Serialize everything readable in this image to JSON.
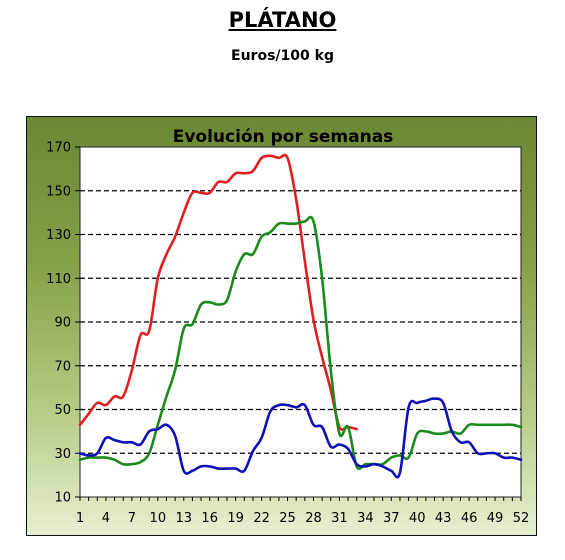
{
  "header": {
    "title": "PLÁTANO",
    "subtitle": "Euros/100 kg"
  },
  "chart_data": {
    "type": "line",
    "title": "Evolución por semanas",
    "xlabel": "",
    "ylabel": "",
    "xlim": [
      1,
      52
    ],
    "ylim": [
      10,
      170
    ],
    "x_ticks": [
      1,
      4,
      7,
      10,
      13,
      16,
      19,
      22,
      25,
      28,
      31,
      34,
      37,
      40,
      43,
      46,
      49,
      52
    ],
    "y_ticks": [
      10,
      30,
      50,
      70,
      90,
      110,
      130,
      150,
      170
    ],
    "grid": "horizontal-dashed",
    "background": "#ffffff",
    "series": [
      {
        "color": "#dd1f1f",
        "x": [
          1,
          2,
          3,
          4,
          5,
          6,
          7,
          8,
          9,
          10,
          11,
          12,
          13,
          14,
          15,
          16,
          17,
          18,
          19,
          20,
          21,
          22,
          23,
          24,
          25,
          26,
          27,
          28,
          29,
          30,
          31,
          32,
          33
        ],
        "values": [
          43,
          48,
          53,
          52,
          56,
          56,
          68,
          84,
          86,
          110,
          121,
          129,
          140,
          149,
          149,
          149,
          154,
          154,
          158,
          158,
          159,
          165,
          166,
          165,
          165,
          146,
          118,
          91,
          74,
          59,
          42,
          42,
          41
        ]
      },
      {
        "color": "#1a8a1a",
        "x": [
          1,
          2,
          3,
          4,
          5,
          6,
          7,
          8,
          9,
          10,
          11,
          12,
          13,
          14,
          15,
          16,
          17,
          18,
          19,
          20,
          21,
          22,
          23,
          24,
          25,
          26,
          27,
          28,
          29,
          30,
          31,
          32,
          33,
          34,
          35,
          36,
          37,
          38,
          39,
          40,
          41,
          42,
          43,
          44,
          45,
          46,
          47,
          48,
          49,
          50,
          51,
          52
        ],
        "values": [
          27,
          28,
          28,
          28,
          27,
          25,
          25,
          26,
          30,
          43,
          56,
          68,
          87,
          89,
          98,
          99,
          98,
          100,
          113,
          121,
          121,
          129,
          131,
          135,
          135,
          135,
          136,
          136,
          110,
          68,
          39,
          42,
          24,
          25,
          25,
          25,
          28,
          29,
          28,
          39,
          40,
          39,
          39,
          40,
          39,
          43,
          43,
          43,
          43,
          43,
          43,
          42
        ]
      },
      {
        "color": "#1010b8",
        "x": [
          1,
          2,
          3,
          4,
          5,
          6,
          7,
          8,
          9,
          10,
          11,
          12,
          13,
          14,
          15,
          16,
          17,
          18,
          19,
          20,
          21,
          22,
          23,
          24,
          25,
          26,
          27,
          28,
          29,
          30,
          31,
          32,
          33,
          34,
          35,
          36,
          37,
          38,
          39,
          40,
          41,
          42,
          43,
          44,
          45,
          46,
          47,
          48,
          49,
          50,
          51,
          52
        ],
        "values": [
          30,
          29,
          30,
          37,
          36,
          35,
          35,
          34,
          40,
          41,
          43,
          38,
          22,
          22,
          24,
          24,
          23,
          23,
          23,
          22,
          31,
          37,
          49,
          52,
          52,
          51,
          52,
          43,
          42,
          33,
          34,
          32,
          25,
          24,
          25,
          24,
          22,
          21,
          51,
          53,
          54,
          55,
          53,
          40,
          35,
          35,
          30,
          30,
          30,
          28,
          28,
          27
        ]
      }
    ]
  }
}
